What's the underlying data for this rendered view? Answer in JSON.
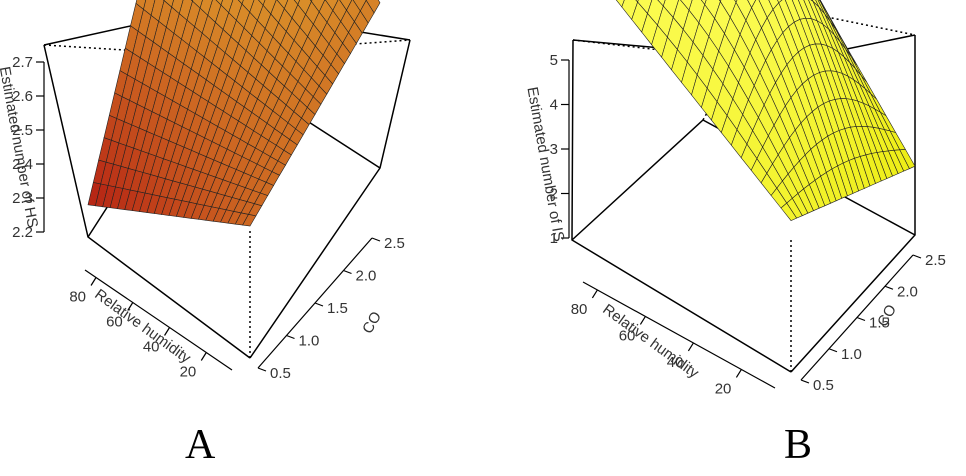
{
  "chart_data": [
    {
      "type": "surface3d",
      "panel_label": "A",
      "xlabel": "Relative humidity",
      "ylabel": "CO",
      "zlabel": "Estimated number of HS",
      "x_ticks": [
        "80",
        "60",
        "40",
        "20"
      ],
      "y_ticks": [
        "0.5",
        "1.0",
        "1.5",
        "2.0",
        "2.5"
      ],
      "z_ticks": [
        "2.2",
        "2.3",
        "2.4",
        "2.5",
        "2.6",
        "2.7"
      ],
      "xlim": [
        15,
        95
      ],
      "ylim": [
        0.3,
        2.8
      ],
      "zlim": [
        2.15,
        2.75
      ],
      "corners": {
        "rh_high_co_low": 2.19,
        "rh_low_co_low": 2.37,
        "rh_low_co_high": 2.43,
        "rh_high_co_high": 2.75
      },
      "colormap": [
        "#b01010",
        "#ffff40"
      ]
    },
    {
      "type": "surface3d",
      "panel_label": "B",
      "xlabel": "Relative humidity",
      "ylabel": "CO",
      "zlabel": "Estimated number of IS",
      "x_ticks": [
        "80",
        "60",
        "40",
        "20"
      ],
      "y_ticks": [
        "0.5",
        "1.0",
        "1.5",
        "2.0",
        "2.5"
      ],
      "z_ticks": [
        "1",
        "2",
        "3",
        "4",
        "5"
      ],
      "xlim": [
        15,
        95
      ],
      "ylim": [
        0.3,
        2.8
      ],
      "zlim": [
        0.5,
        5.3
      ],
      "corners": {
        "rh_high_co_low": 4.8,
        "rh_low_co_low": 2.7,
        "rh_low_co_high": 2.0,
        "rh_high_co_high": 5.2
      },
      "colormap": [
        "#e8e800",
        "#ffff60"
      ]
    }
  ]
}
